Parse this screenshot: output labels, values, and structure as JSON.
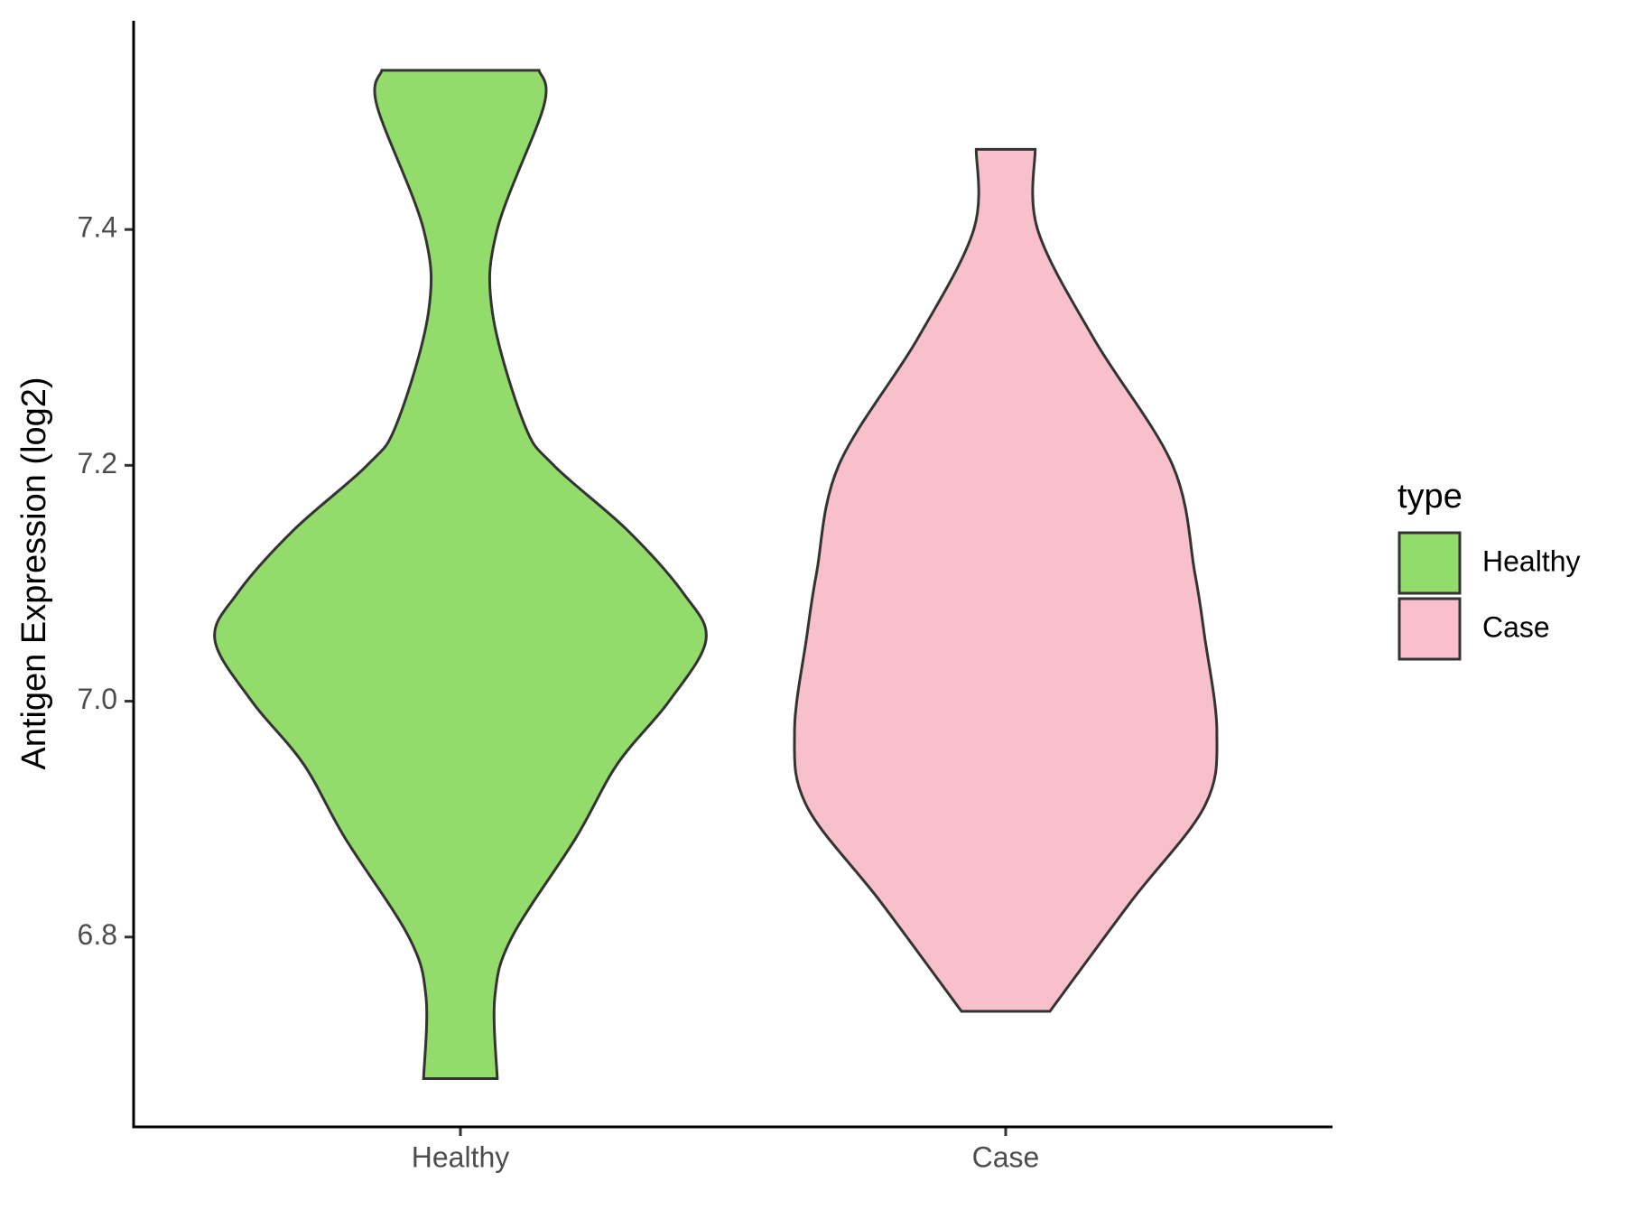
{
  "chart_data": {
    "type": "violin",
    "y_label": "Antigen Expression (log2)",
    "legend_title": "type",
    "legend_position": "right",
    "ylim": [
      6.639,
      7.577
    ],
    "yticks": [
      {
        "value": 6.8,
        "label": "6.8"
      },
      {
        "value": 7.0,
        "label": "7.0"
      },
      {
        "value": 7.2,
        "label": "7.2"
      },
      {
        "value": 7.4,
        "label": "7.4"
      }
    ],
    "categories": [
      "Healthy",
      "Case"
    ],
    "series": [
      {
        "name": "Healthy",
        "color": "#93dc6b",
        "y": [
          7.535,
          7.505,
          7.4,
          7.33,
          7.235,
          7.2,
          7.145,
          7.091,
          7.052,
          7.0,
          6.947,
          6.884,
          6.8,
          6.749,
          6.68
        ],
        "density": [
          0.32,
          0.34,
          0.15,
          0.13,
          0.26,
          0.38,
          0.68,
          0.91,
          1.0,
          0.85,
          0.64,
          0.47,
          0.21,
          0.14,
          0.15
        ]
      },
      {
        "name": "Case",
        "color": "#f7c0cb",
        "y": [
          7.468,
          7.4,
          7.307,
          7.2,
          7.109,
          7.055,
          6.974,
          6.911,
          6.83,
          6.737
        ],
        "density": [
          0.12,
          0.13,
          0.36,
          0.68,
          0.77,
          0.81,
          0.86,
          0.81,
          0.51,
          0.18
        ]
      }
    ]
  }
}
